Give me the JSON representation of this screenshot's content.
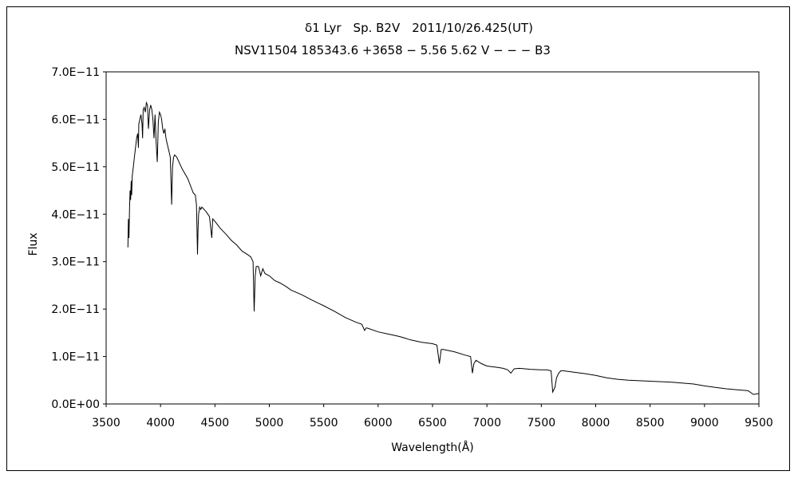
{
  "chart_data": {
    "type": "line",
    "title": "δ1 Lyr　Sp. B2V　2011/10/26.425(UT)",
    "subtitle": "NSV11504 185343.6 +3658 − 5.56 5.62 V − − − B3",
    "xlabel": "Wavelength(Å)",
    "ylabel": "Flux",
    "xlim": [
      3500,
      9500
    ],
    "ylim": [
      0,
      7e-11
    ],
    "x_ticks": [
      3500,
      4000,
      4500,
      5000,
      5500,
      6000,
      6500,
      7000,
      7500,
      8000,
      8500,
      9000,
      9500
    ],
    "x_tick_labels": [
      "3500",
      "4000",
      "4500",
      "5000",
      "5500",
      "6000",
      "6500",
      "7000",
      "7500",
      "8000",
      "8500",
      "9000",
      "9500"
    ],
    "y_ticks": [
      0,
      1e-11,
      2e-11,
      3e-11,
      4e-11,
      5e-11,
      6e-11,
      7e-11
    ],
    "y_tick_labels": [
      "0.0E+00",
      "1.0E−11",
      "2.0E−11",
      "3.0E−11",
      "4.0E−11",
      "5.0E−11",
      "6.0E−11",
      "7.0E−11"
    ],
    "grid": false,
    "legend": "none",
    "series": [
      {
        "color": "#000000",
        "x": [
          3700,
          3705,
          3710,
          3715,
          3720,
          3725,
          3730,
          3735,
          3740,
          3750,
          3760,
          3770,
          3780,
          3790,
          3797,
          3800,
          3810,
          3820,
          3830,
          3835,
          3840,
          3850,
          3860,
          3870,
          3880,
          3889,
          3900,
          3910,
          3920,
          3930,
          3940,
          3950,
          3960,
          3970,
          3980,
          3990,
          4000,
          4010,
          4020,
          4030,
          4040,
          4050,
          4060,
          4080,
          4090,
          4102,
          4110,
          4120,
          4130,
          4150,
          4170,
          4200,
          4250,
          4300,
          4320,
          4330,
          4340,
          4345,
          4350,
          4360,
          4370,
          4380,
          4400,
          4420,
          4450,
          4471,
          4480,
          4500,
          4550,
          4600,
          4650,
          4700,
          4750,
          4800,
          4830,
          4850,
          4861,
          4870,
          4880,
          4900,
          4921,
          4940,
          4960,
          5000,
          5050,
          5100,
          5150,
          5200,
          5300,
          5400,
          5500,
          5600,
          5700,
          5800,
          5850,
          5876,
          5890,
          5900,
          6000,
          6100,
          6200,
          6300,
          6400,
          6500,
          6540,
          6563,
          6580,
          6600,
          6700,
          6800,
          6850,
          6867,
          6880,
          6900,
          6950,
          7000,
          7100,
          7150,
          7190,
          7220,
          7250,
          7300,
          7400,
          7500,
          7550,
          7590,
          7605,
          7625,
          7640,
          7660,
          7680,
          7700,
          7800,
          7900,
          8000,
          8100,
          8200,
          8300,
          8400,
          8500,
          8600,
          8700,
          8800,
          8900,
          9000,
          9100,
          9200,
          9300,
          9400,
          9450,
          9500
        ],
        "y": [
          3.3e-11,
          3.9e-11,
          3.5e-11,
          4.1e-11,
          4.5e-11,
          4.3e-11,
          4.7e-11,
          4.4e-11,
          4.8e-11,
          5e-11,
          5.2e-11,
          5.4e-11,
          5.6e-11,
          5.7e-11,
          5.4e-11,
          5.9e-11,
          6e-11,
          6.1e-11,
          5.9e-11,
          5.6e-11,
          6.2e-11,
          6.25e-11,
          6.15e-11,
          6.35e-11,
          6.3e-11,
          5.8e-11,
          6.2e-11,
          6.3e-11,
          6.2e-11,
          6e-11,
          5.6e-11,
          6.1e-11,
          5.5e-11,
          5.1e-11,
          5.95e-11,
          6.15e-11,
          6.1e-11,
          6e-11,
          5.8e-11,
          5.7e-11,
          5.8e-11,
          5.6e-11,
          5.5e-11,
          5.3e-11,
          5.2e-11,
          4.2e-11,
          5e-11,
          5.2e-11,
          5.25e-11,
          5.2e-11,
          5.1e-11,
          4.95e-11,
          4.75e-11,
          4.45e-11,
          4.4e-11,
          4.2e-11,
          3.15e-11,
          3.7e-11,
          4e-11,
          4.15e-11,
          4.1e-11,
          4.15e-11,
          4.1e-11,
          4.05e-11,
          3.95e-11,
          3.5e-11,
          3.9e-11,
          3.85e-11,
          3.7e-11,
          3.58e-11,
          3.45e-11,
          3.35e-11,
          3.22e-11,
          3.15e-11,
          3.1e-11,
          3e-11,
          1.95e-11,
          2.7e-11,
          2.9e-11,
          2.9e-11,
          2.7e-11,
          2.85e-11,
          2.75e-11,
          2.7e-11,
          2.6e-11,
          2.55e-11,
          2.48e-11,
          2.4e-11,
          2.3e-11,
          2.18e-11,
          2.07e-11,
          1.95e-11,
          1.82e-11,
          1.72e-11,
          1.68e-11,
          1.55e-11,
          1.6e-11,
          1.6e-11,
          1.52e-11,
          1.47e-11,
          1.42e-11,
          1.35e-11,
          1.3e-11,
          1.27e-11,
          1.24e-11,
          8.5e-12,
          1.15e-11,
          1.15e-11,
          1.1e-11,
          1.03e-11,
          1e-11,
          6.5e-12,
          8.5e-12,
          9.2e-12,
          8.5e-12,
          8e-12,
          7.7e-12,
          7.5e-12,
          7.2e-12,
          6.5e-12,
          7.4e-12,
          7.5e-12,
          7.3e-12,
          7.2e-12,
          7.2e-12,
          7e-12,
          2.5e-12,
          3.5e-12,
          5.5e-12,
          6.5e-12,
          7e-12,
          7e-12,
          6.7e-12,
          6.4e-12,
          6e-12,
          5.5e-12,
          5.2e-12,
          5e-12,
          4.9e-12,
          4.8e-12,
          4.7e-12,
          4.6e-12,
          4.4e-12,
          4.2e-12,
          3.8e-12,
          3.5e-12,
          3.2e-12,
          3e-12,
          2.8e-12,
          2e-12,
          2.2e-12
        ]
      }
    ]
  }
}
